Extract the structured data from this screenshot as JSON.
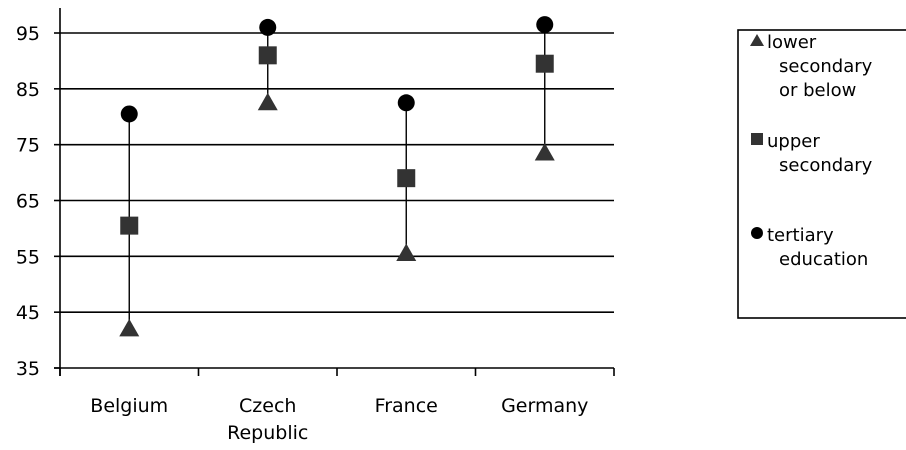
{
  "chart_data": {
    "type": "scatter",
    "categories": [
      [
        "Belgium"
      ],
      [
        "Czech",
        "Republic"
      ],
      [
        "France"
      ],
      [
        "Germany"
      ]
    ],
    "series": [
      {
        "name": [
          "lower",
          "secondary",
          "or below"
        ],
        "marker": "triangle",
        "values": [
          42,
          82.5,
          55.5,
          73.5
        ]
      },
      {
        "name": [
          "upper",
          "secondary"
        ],
        "marker": "square",
        "values": [
          60.5,
          91,
          69,
          89.5
        ]
      },
      {
        "name": [
          "tertiary",
          "education"
        ],
        "marker": "circle",
        "values": [
          80.5,
          96,
          82.5,
          96.5
        ]
      }
    ],
    "yticks": [
      35,
      45,
      55,
      65,
      75,
      85,
      95
    ],
    "ylim": [
      35,
      95
    ],
    "grid": true,
    "legend_position": "right",
    "title": "",
    "xlabel": "",
    "ylabel": "",
    "colors": {
      "markers": "#000000",
      "gridlines": "#000000",
      "background": "#ffffff"
    }
  }
}
